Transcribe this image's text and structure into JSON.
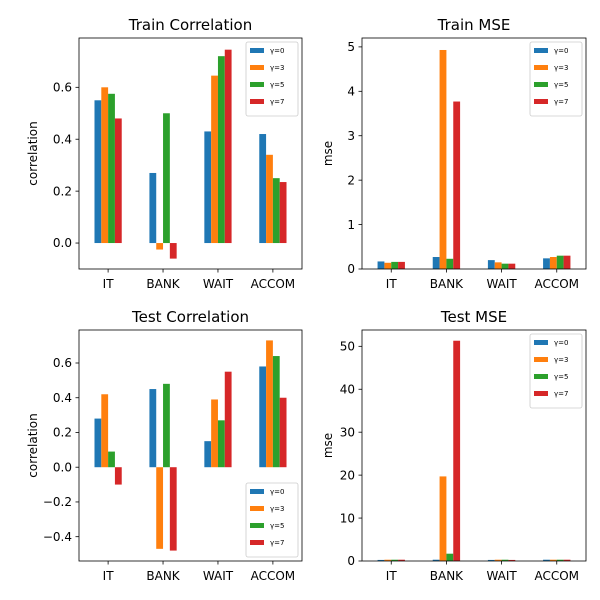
{
  "colors": {
    "gamma0": "#1f77b4",
    "gamma3": "#ff7f0e",
    "gamma5": "#2ca02c",
    "gamma7": "#d62728"
  },
  "chart_data": [
    {
      "id": "train-correlation",
      "type": "bar",
      "title": "Train Correlation",
      "xlabel": "",
      "ylabel": "correlation",
      "categories": [
        "IT",
        "BANK",
        "WAIT",
        "ACCOM"
      ],
      "ylim": [
        -0.1,
        0.79
      ],
      "yticks": [
        0.0,
        0.2,
        0.4,
        0.6
      ],
      "ytick_labels": [
        "0.0",
        "0.2",
        "0.4",
        "0.6"
      ],
      "grid": false,
      "legend_position": "top-right",
      "series": [
        {
          "name": "γ=0",
          "color_key": "gamma0",
          "values": [
            0.55,
            0.27,
            0.43,
            0.42
          ]
        },
        {
          "name": "γ=3",
          "color_key": "gamma3",
          "values": [
            0.6,
            -0.025,
            0.645,
            0.34
          ]
        },
        {
          "name": "γ=5",
          "color_key": "gamma5",
          "values": [
            0.575,
            0.5,
            0.72,
            0.25
          ]
        },
        {
          "name": "γ=7",
          "color_key": "gamma7",
          "values": [
            0.48,
            -0.06,
            0.745,
            0.235
          ]
        }
      ]
    },
    {
      "id": "train-mse",
      "type": "bar",
      "title": "Train MSE",
      "xlabel": "",
      "ylabel": "mse",
      "categories": [
        "IT",
        "BANK",
        "WAIT",
        "ACCOM"
      ],
      "ylim": [
        0,
        5.2
      ],
      "yticks": [
        0,
        1,
        2,
        3,
        4,
        5
      ],
      "ytick_labels": [
        "0",
        "1",
        "2",
        "3",
        "4",
        "5"
      ],
      "grid": false,
      "legend_position": "top-right",
      "series": [
        {
          "name": "γ=0",
          "color_key": "gamma0",
          "values": [
            0.17,
            0.27,
            0.2,
            0.24
          ]
        },
        {
          "name": "γ=3",
          "color_key": "gamma3",
          "values": [
            0.14,
            4.93,
            0.15,
            0.27
          ]
        },
        {
          "name": "γ=5",
          "color_key": "gamma5",
          "values": [
            0.16,
            0.23,
            0.12,
            0.3
          ]
        },
        {
          "name": "γ=7",
          "color_key": "gamma7",
          "values": [
            0.16,
            3.77,
            0.12,
            0.3
          ]
        }
      ]
    },
    {
      "id": "test-correlation",
      "type": "bar",
      "title": "Test Correlation",
      "xlabel": "",
      "ylabel": "correlation",
      "categories": [
        "IT",
        "BANK",
        "WAIT",
        "ACCOM"
      ],
      "ylim": [
        -0.54,
        0.79
      ],
      "yticks": [
        -0.4,
        -0.2,
        0.0,
        0.2,
        0.4,
        0.6
      ],
      "ytick_labels": [
        "−0.4",
        "−0.2",
        "0.0",
        "0.2",
        "0.4",
        "0.6"
      ],
      "grid": false,
      "legend_position": "bottom-right",
      "series": [
        {
          "name": "γ=0",
          "color_key": "gamma0",
          "values": [
            0.28,
            0.45,
            0.15,
            0.58
          ]
        },
        {
          "name": "γ=3",
          "color_key": "gamma3",
          "values": [
            0.42,
            -0.47,
            0.39,
            0.73
          ]
        },
        {
          "name": "γ=5",
          "color_key": "gamma5",
          "values": [
            0.09,
            0.48,
            0.27,
            0.64
          ]
        },
        {
          "name": "γ=7",
          "color_key": "gamma7",
          "values": [
            -0.1,
            -0.48,
            0.55,
            0.4
          ]
        }
      ]
    },
    {
      "id": "test-mse",
      "type": "bar",
      "title": "Test MSE",
      "xlabel": "",
      "ylabel": "mse",
      "categories": [
        "IT",
        "BANK",
        "WAIT",
        "ACCOM"
      ],
      "ylim": [
        0,
        53.8
      ],
      "yticks": [
        0,
        10,
        20,
        30,
        40,
        50
      ],
      "ytick_labels": [
        "0",
        "10",
        "20",
        "30",
        "40",
        "50"
      ],
      "grid": false,
      "legend_position": "top-right",
      "series": [
        {
          "name": "γ=0",
          "color_key": "gamma0",
          "values": [
            0.25,
            0.3,
            0.25,
            0.3
          ]
        },
        {
          "name": "γ=3",
          "color_key": "gamma3",
          "values": [
            0.3,
            19.7,
            0.3,
            0.3
          ]
        },
        {
          "name": "γ=5",
          "color_key": "gamma5",
          "values": [
            0.3,
            1.7,
            0.3,
            0.3
          ]
        },
        {
          "name": "γ=7",
          "color_key": "gamma7",
          "values": [
            0.3,
            51.3,
            0.25,
            0.3
          ]
        }
      ]
    }
  ]
}
